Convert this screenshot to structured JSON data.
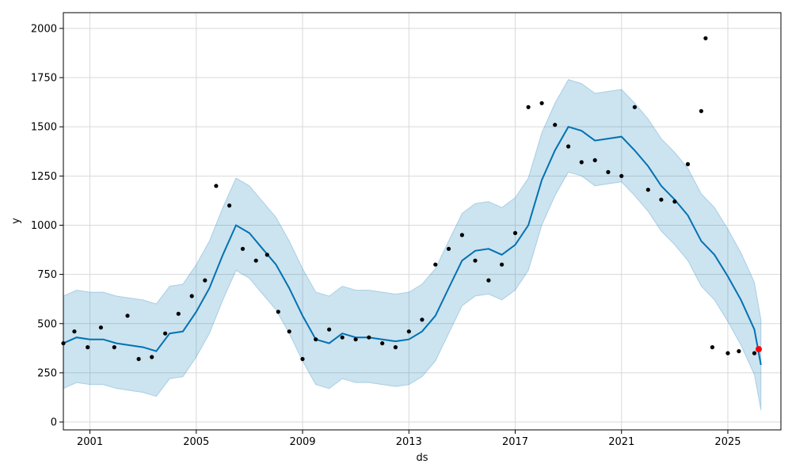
{
  "chart_data": {
    "type": "scatter",
    "title": "",
    "xlabel": "ds",
    "ylabel": "y",
    "x_ticks": [
      "2001",
      "2005",
      "2009",
      "2013",
      "2017",
      "2021",
      "2025"
    ],
    "y_ticks": [
      "0",
      "250",
      "500",
      "750",
      "1000",
      "1250",
      "1500",
      "1750",
      "2000"
    ],
    "xlim": [
      "2000-01-01",
      "2026-12-31"
    ],
    "ylim": [
      -40,
      2080
    ],
    "grid": true,
    "colors": {
      "observed": "#000000",
      "forecast_line": "#0072B2",
      "uncertainty_band": "#0072B2",
      "highlight_point": "#ff0000"
    },
    "forecast": {
      "name": "yhat",
      "x": [
        "2000-01-01",
        "2000-07-01",
        "2001-01-01",
        "2001-07-01",
        "2002-01-01",
        "2002-07-01",
        "2003-01-01",
        "2003-07-01",
        "2004-01-01",
        "2004-07-01",
        "2005-01-01",
        "2005-07-01",
        "2006-01-01",
        "2006-07-01",
        "2007-01-01",
        "2007-07-01",
        "2008-01-01",
        "2008-07-01",
        "2009-01-01",
        "2009-07-01",
        "2010-01-01",
        "2010-07-01",
        "2011-01-01",
        "2011-07-01",
        "2012-01-01",
        "2012-07-01",
        "2013-01-01",
        "2013-07-01",
        "2014-01-01",
        "2014-07-01",
        "2015-01-01",
        "2015-07-01",
        "2016-01-01",
        "2016-07-01",
        "2017-01-01",
        "2017-07-01",
        "2018-01-01",
        "2018-07-01",
        "2019-01-01",
        "2019-07-01",
        "2020-01-01",
        "2020-07-01",
        "2021-01-01",
        "2021-07-01",
        "2022-01-01",
        "2022-07-01",
        "2023-01-01",
        "2023-07-01",
        "2024-01-01",
        "2024-07-01",
        "2025-01-01",
        "2025-07-01",
        "2026-01-01",
        "2026-04-01"
      ],
      "yhat": [
        400,
        430,
        420,
        420,
        400,
        390,
        380,
        360,
        450,
        460,
        560,
        680,
        850,
        1000,
        960,
        880,
        800,
        680,
        540,
        420,
        400,
        450,
        430,
        430,
        420,
        410,
        420,
        460,
        540,
        680,
        820,
        870,
        880,
        850,
        900,
        1000,
        1230,
        1380,
        1500,
        1480,
        1430,
        1440,
        1450,
        1380,
        1300,
        1200,
        1130,
        1050,
        920,
        850,
        740,
        620,
        470,
        290
      ],
      "yhat_upper": [
        640,
        670,
        660,
        660,
        640,
        630,
        620,
        600,
        690,
        700,
        800,
        920,
        1090,
        1240,
        1200,
        1120,
        1040,
        920,
        780,
        660,
        640,
        690,
        670,
        670,
        660,
        650,
        660,
        700,
        780,
        920,
        1060,
        1110,
        1120,
        1090,
        1140,
        1240,
        1470,
        1620,
        1740,
        1720,
        1670,
        1680,
        1690,
        1620,
        1540,
        1440,
        1370,
        1290,
        1160,
        1090,
        980,
        860,
        710,
        520
      ],
      "yhat_lower": [
        170,
        200,
        190,
        190,
        170,
        160,
        150,
        130,
        220,
        230,
        330,
        450,
        620,
        770,
        730,
        650,
        570,
        450,
        310,
        190,
        170,
        220,
        200,
        200,
        190,
        180,
        190,
        230,
        310,
        450,
        590,
        640,
        650,
        620,
        670,
        770,
        1000,
        1150,
        1270,
        1250,
        1200,
        1210,
        1220,
        1150,
        1070,
        970,
        900,
        820,
        690,
        620,
        510,
        390,
        240,
        60
      ]
    },
    "observed": {
      "name": "y",
      "x": [
        "2000-01-01",
        "2000-06-01",
        "2000-12-01",
        "2001-06-01",
        "2001-12-01",
        "2002-06-01",
        "2002-11-01",
        "2003-05-01",
        "2003-11-01",
        "2004-05-01",
        "2004-11-01",
        "2005-05-01",
        "2005-10-01",
        "2006-04-01",
        "2006-10-01",
        "2007-04-01",
        "2007-09-01",
        "2008-02-01",
        "2008-07-01",
        "2009-01-01",
        "2009-07-01",
        "2010-01-01",
        "2010-07-01",
        "2011-01-01",
        "2011-07-01",
        "2012-01-01",
        "2012-07-01",
        "2013-01-01",
        "2013-07-01",
        "2014-01-01",
        "2014-07-01",
        "2015-01-01",
        "2015-07-01",
        "2016-01-01",
        "2016-07-01",
        "2017-01-01",
        "2017-07-01",
        "2018-01-01",
        "2018-07-01",
        "2019-01-01",
        "2019-07-01",
        "2020-01-01",
        "2020-07-01",
        "2021-01-01",
        "2021-07-01",
        "2022-01-01",
        "2022-07-01",
        "2023-01-01",
        "2023-07-01",
        "2024-01-01",
        "2024-03-01",
        "2024-06-01",
        "2025-01-01",
        "2025-06-01",
        "2026-01-01",
        "2026-03-01"
      ],
      "y": [
        400,
        460,
        380,
        480,
        380,
        540,
        320,
        330,
        450,
        550,
        640,
        720,
        1200,
        1100,
        880,
        820,
        850,
        560,
        460,
        320,
        420,
        470,
        430,
        420,
        430,
        400,
        380,
        460,
        520,
        800,
        880,
        950,
        820,
        720,
        800,
        960,
        1600,
        1620,
        1510,
        1400,
        1320,
        1330,
        1270,
        1250,
        1600,
        1180,
        1130,
        1120,
        1310,
        1580,
        1950,
        380,
        350,
        360,
        350,
        370
      ]
    },
    "highlight": {
      "x": "2026-03-01",
      "y": 370
    }
  }
}
